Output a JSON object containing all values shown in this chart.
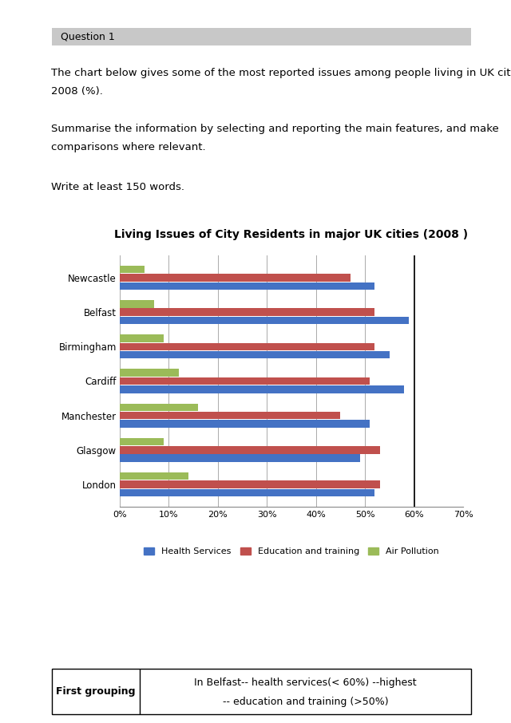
{
  "title": "Living Issues of City Residents in major UK cities (2008 )",
  "cities": [
    "Newcastle",
    "Belfast",
    "Birmingham",
    "Cardiff",
    "Manchester",
    "Glasgow",
    "London"
  ],
  "health_services": [
    52,
    59,
    55,
    58,
    51,
    49,
    52
  ],
  "education_training": [
    47,
    52,
    52,
    51,
    45,
    53,
    53
  ],
  "air_pollution": [
    5,
    7,
    9,
    12,
    16,
    9,
    14
  ],
  "colors": {
    "health": "#4472C4",
    "education": "#C0504D",
    "air": "#9BBB59"
  },
  "xlim": [
    0,
    70
  ],
  "xticks": [
    0,
    10,
    20,
    30,
    40,
    50,
    60,
    70
  ],
  "legend_labels": [
    "Health Services",
    "Education and training",
    "Air Pollution"
  ],
  "question_label": "Question 1",
  "line1": "The chart below gives some of the most reported issues among people living in UK cities in",
  "line2": "2008 (%).",
  "line3": "Summarise the information by selecting and reporting the main features, and make",
  "line4": "comparisons where relevant.",
  "line5": "Write at least 150 words.",
  "table_col1": "First grouping",
  "table_line1": "In Belfast-- health services(< 60%) --highest",
  "table_line2": "-- education and training (>50%)",
  "bg_color": "#FFFFFF",
  "chart_bg": "#FFFFFF",
  "grid_color": "#AAAAAA",
  "question_bg": "#C8C8C8"
}
